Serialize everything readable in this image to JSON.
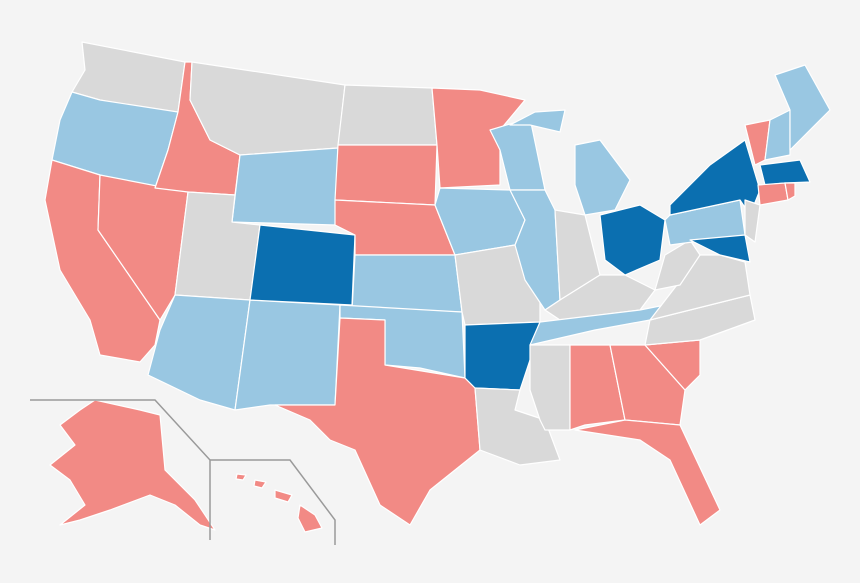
{
  "map": {
    "colors": [
      "#f28a85",
      "#99c7e2",
      "#0b6fb0",
      "#d9d9d9"
    ],
    "border": "#ffffff",
    "background": "#f4f4f4"
  }
}
